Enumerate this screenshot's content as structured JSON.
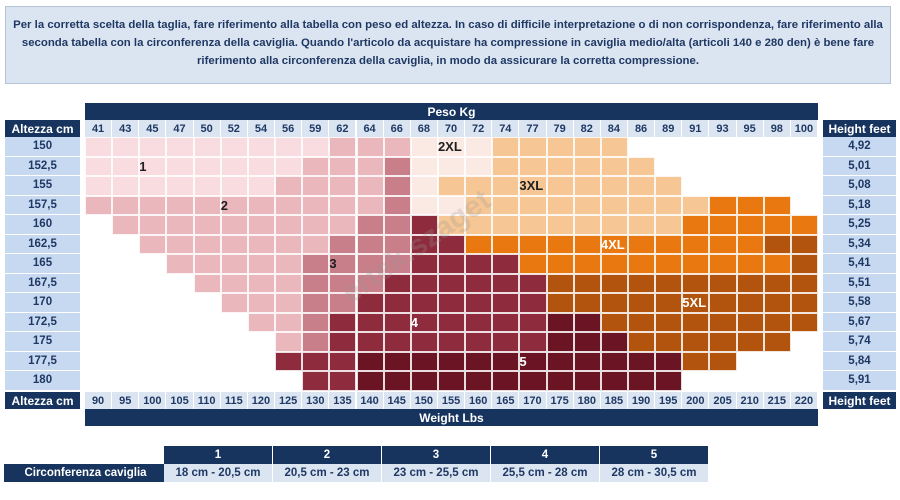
{
  "intro_text": "Per la corretta scelta della taglia, fare riferimento alla tabella con peso ed altezza. In caso di difficile interpretazione o di non corrispondenza, fare riferimento alla seconda tabella con la circonferenza della caviglia. Quando l'articolo da acquistare ha compressione in caviglia medio/alta (articoli 140 e 280 den) è bene fare riferimento alla circonferenza della caviglia, in modo da assicurare la corretta compressione.",
  "header": {
    "peso": "Peso Kg",
    "weight_lbs": "Weight Lbs",
    "altezza_top": "Altezza cm",
    "altezza_bottom": "Altezza cm",
    "height_feet_top": "Height feet",
    "height_feet_bottom": "Height feet"
  },
  "watermark": "ertek.szaget",
  "chart_data": {
    "type": "heatmap",
    "x_kg": [
      "41",
      "43",
      "45",
      "47",
      "50",
      "52",
      "54",
      "56",
      "59",
      "62",
      "64",
      "66",
      "68",
      "70",
      "72",
      "74",
      "77",
      "79",
      "82",
      "84",
      "86",
      "89",
      "91",
      "93",
      "95",
      "98",
      "100"
    ],
    "x_lbs": [
      "90",
      "95",
      "100",
      "105",
      "110",
      "115",
      "120",
      "125",
      "130",
      "135",
      "140",
      "145",
      "150",
      "155",
      "160",
      "165",
      "170",
      "175",
      "180",
      "185",
      "190",
      "195",
      "200",
      "205",
      "210",
      "215",
      "220"
    ],
    "y_cm": [
      "150",
      "152,5",
      "155",
      "157,5",
      "160",
      "162,5",
      "165",
      "167,5",
      "170",
      "172,5",
      "175",
      "177,5",
      "180"
    ],
    "y_feet": [
      "4,92",
      "5,01",
      "5,08",
      "5,18",
      "5,25",
      "5,34",
      "5,41",
      "5,51",
      "5,58",
      "5,67",
      "5,74",
      "5,84",
      "5,91"
    ],
    "sizes": [
      {
        "label": "1",
        "color": "#f9dce0",
        "ranges": [
          [
            0,
            8
          ],
          [
            0,
            7
          ],
          [
            0,
            6
          ],
          [],
          [],
          [],
          [],
          [],
          [],
          [],
          [],
          [],
          []
        ]
      },
      {
        "label": "2",
        "color": "#eab7bd",
        "ranges": [
          [
            9,
            11
          ],
          [
            8,
            10
          ],
          [
            7,
            10
          ],
          [
            0,
            10
          ],
          [
            1,
            9
          ],
          [
            2,
            8
          ],
          [
            3,
            7
          ],
          [
            4,
            7
          ],
          [
            5,
            7
          ],
          [
            6,
            7
          ],
          [
            7,
            7
          ],
          [],
          []
        ]
      },
      {
        "label": "3",
        "color": "#c97f8a",
        "ranges": [
          [],
          [
            11,
            11
          ],
          [
            11,
            11
          ],
          [
            11,
            11
          ],
          [
            10,
            11
          ],
          [
            9,
            11
          ],
          [
            8,
            11
          ],
          [
            8,
            10
          ],
          [
            8,
            9
          ],
          [
            8,
            8
          ],
          [
            8,
            8
          ],
          [],
          []
        ]
      },
      {
        "label": "4",
        "color": "#8e2b3d",
        "ranges": [
          [],
          [],
          [],
          [],
          [
            12,
            12
          ],
          [
            12,
            13
          ],
          [
            12,
            15
          ],
          [
            11,
            16
          ],
          [
            10,
            16
          ],
          [
            9,
            16
          ],
          [
            9,
            16
          ],
          [
            7,
            9
          ],
          [
            8,
            9
          ]
        ]
      },
      {
        "label": "5",
        "color": "#6b1424",
        "ranges": [
          [],
          [],
          [],
          [],
          [],
          [],
          [],
          [],
          [
            17,
            17
          ],
          [
            17,
            18
          ],
          [
            17,
            19
          ],
          [
            10,
            21
          ],
          [
            10,
            21
          ]
        ]
      },
      {
        "label": "2XL",
        "color": "#fbe9e3",
        "ranges": [
          [
            12,
            14
          ],
          [
            12,
            14
          ],
          [
            12,
            12
          ],
          [
            12,
            13
          ],
          [],
          [],
          [],
          [],
          [],
          [],
          [],
          [],
          []
        ]
      },
      {
        "label": "3XL",
        "color": "#f6c795",
        "ranges": [
          [
            15,
            19
          ],
          [
            15,
            20
          ],
          [
            13,
            21
          ],
          [
            14,
            22
          ],
          [
            13,
            21
          ],
          [],
          [],
          [],
          [],
          [],
          [],
          [],
          []
        ]
      },
      {
        "label": "4XL",
        "color": "#e8780f",
        "ranges": [
          [],
          [],
          [],
          [
            23,
            25
          ],
          [
            22,
            26
          ],
          [
            14,
            24
          ],
          [
            16,
            25
          ],
          [],
          [],
          [],
          [],
          [],
          []
        ]
      },
      {
        "label": "5XL",
        "color": "#b3540e",
        "ranges": [
          [],
          [],
          [],
          [],
          [],
          [
            25,
            26
          ],
          [
            26,
            26
          ],
          [
            17,
            26
          ],
          [
            17,
            26
          ],
          [
            19,
            26
          ],
          [
            20,
            25
          ],
          [
            22,
            23
          ],
          []
        ]
      }
    ],
    "labels": [
      {
        "text": "1",
        "row": 1,
        "col": 2
      },
      {
        "text": "2XL",
        "row": 0,
        "col": 13
      },
      {
        "text": "2",
        "row": 3,
        "col": 5
      },
      {
        "text": "3XL",
        "row": 2,
        "col": 16
      },
      {
        "text": "4XL",
        "row": 5,
        "col": 19
      },
      {
        "text": "3",
        "row": 6,
        "col": 9
      },
      {
        "text": "5XL",
        "row": 8,
        "col": 22
      },
      {
        "text": "4",
        "row": 9,
        "col": 12
      },
      {
        "text": "5",
        "row": 11,
        "col": 16
      }
    ]
  },
  "ankle_table": {
    "label": "Circonferenza caviglia",
    "sizes": [
      "1",
      "2",
      "3",
      "4",
      "5"
    ],
    "values": [
      "18 cm - 20,5 cm",
      "20,5 cm - 23 cm",
      "23 cm - 25,5 cm",
      "25,5 cm - 28 cm",
      "28 cm - 30,5 cm"
    ]
  }
}
